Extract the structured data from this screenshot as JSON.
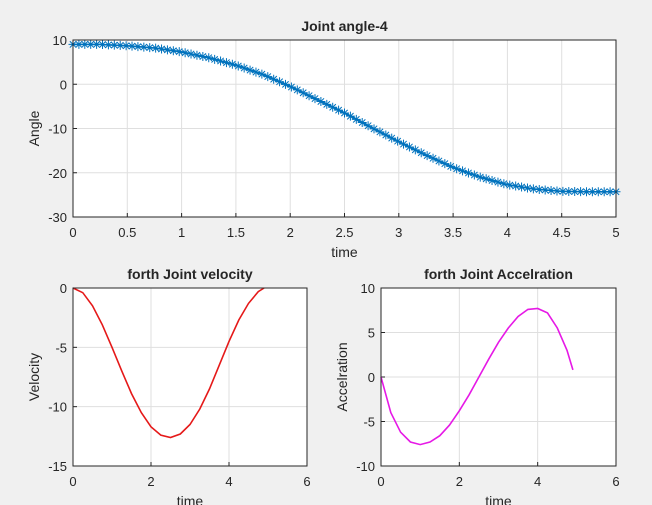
{
  "chart_data": [
    {
      "type": "line",
      "title": "Joint angle-4",
      "xlabel": "time",
      "ylabel": "Angle",
      "xlim": [
        0,
        5
      ],
      "ylim": [
        -30,
        10
      ],
      "xticks": [
        "0",
        "0.5",
        "1",
        "1.5",
        "2",
        "2.5",
        "3",
        "3.5",
        "4",
        "4.5",
        "5"
      ],
      "yticks": [
        "10",
        "0",
        "-10",
        "-20",
        "-30"
      ],
      "grid": true,
      "series": [
        {
          "color": "#0072bd",
          "marker": "*",
          "x": [
            0,
            0.25,
            0.5,
            0.75,
            1,
            1.25,
            1.5,
            1.75,
            2,
            2.25,
            2.5,
            2.75,
            3,
            3.25,
            3.5,
            3.75,
            4,
            4.25,
            4.5,
            4.75,
            5
          ],
          "y": [
            9,
            9,
            8.7,
            8.2,
            7.3,
            6,
            4.3,
            2.2,
            -0.5,
            -3.5,
            -6.5,
            -9.8,
            -13,
            -16,
            -18.8,
            -21,
            -22.7,
            -23.7,
            -24.2,
            -24.3,
            -24.3
          ]
        }
      ]
    },
    {
      "type": "line",
      "title": "forth Joint velocity",
      "xlabel": "time",
      "ylabel": "Velocity",
      "xlim": [
        0,
        6
      ],
      "ylim": [
        -15,
        0
      ],
      "xticks": [
        "0",
        "2",
        "4",
        "6"
      ],
      "yticks": [
        "0",
        "-5",
        "-10",
        "-15"
      ],
      "grid": true,
      "series": [
        {
          "color": "#e51919",
          "x": [
            0,
            0.25,
            0.5,
            0.75,
            1,
            1.25,
            1.5,
            1.75,
            2,
            2.25,
            2.5,
            2.75,
            3,
            3.25,
            3.5,
            3.75,
            4,
            4.25,
            4.5,
            4.75,
            4.9
          ],
          "y": [
            0,
            -0.4,
            -1.5,
            -3.1,
            -5,
            -7,
            -8.9,
            -10.5,
            -11.7,
            -12.4,
            -12.6,
            -12.3,
            -11.5,
            -10.2,
            -8.5,
            -6.5,
            -4.5,
            -2.7,
            -1.3,
            -0.3,
            0
          ]
        }
      ]
    },
    {
      "type": "line",
      "title": "forth Joint Accelration",
      "xlabel": "time",
      "ylabel": "Accelration",
      "xlim": [
        0,
        6
      ],
      "ylim": [
        -10,
        10
      ],
      "xticks": [
        "0",
        "2",
        "4",
        "6"
      ],
      "yticks": [
        "10",
        "5",
        "0",
        "-5",
        "-10"
      ],
      "grid": true,
      "series": [
        {
          "color": "#e619e6",
          "x": [
            0,
            0.25,
            0.5,
            0.75,
            1,
            1.25,
            1.5,
            1.75,
            2,
            2.25,
            2.5,
            2.75,
            3,
            3.25,
            3.5,
            3.75,
            4,
            4.25,
            4.5,
            4.75,
            4.9
          ],
          "y": [
            0,
            -4,
            -6.2,
            -7.3,
            -7.6,
            -7.3,
            -6.6,
            -5.4,
            -3.8,
            -2,
            0,
            2,
            3.9,
            5.5,
            6.8,
            7.6,
            7.7,
            7.2,
            5.5,
            3,
            0.8
          ]
        }
      ]
    }
  ]
}
